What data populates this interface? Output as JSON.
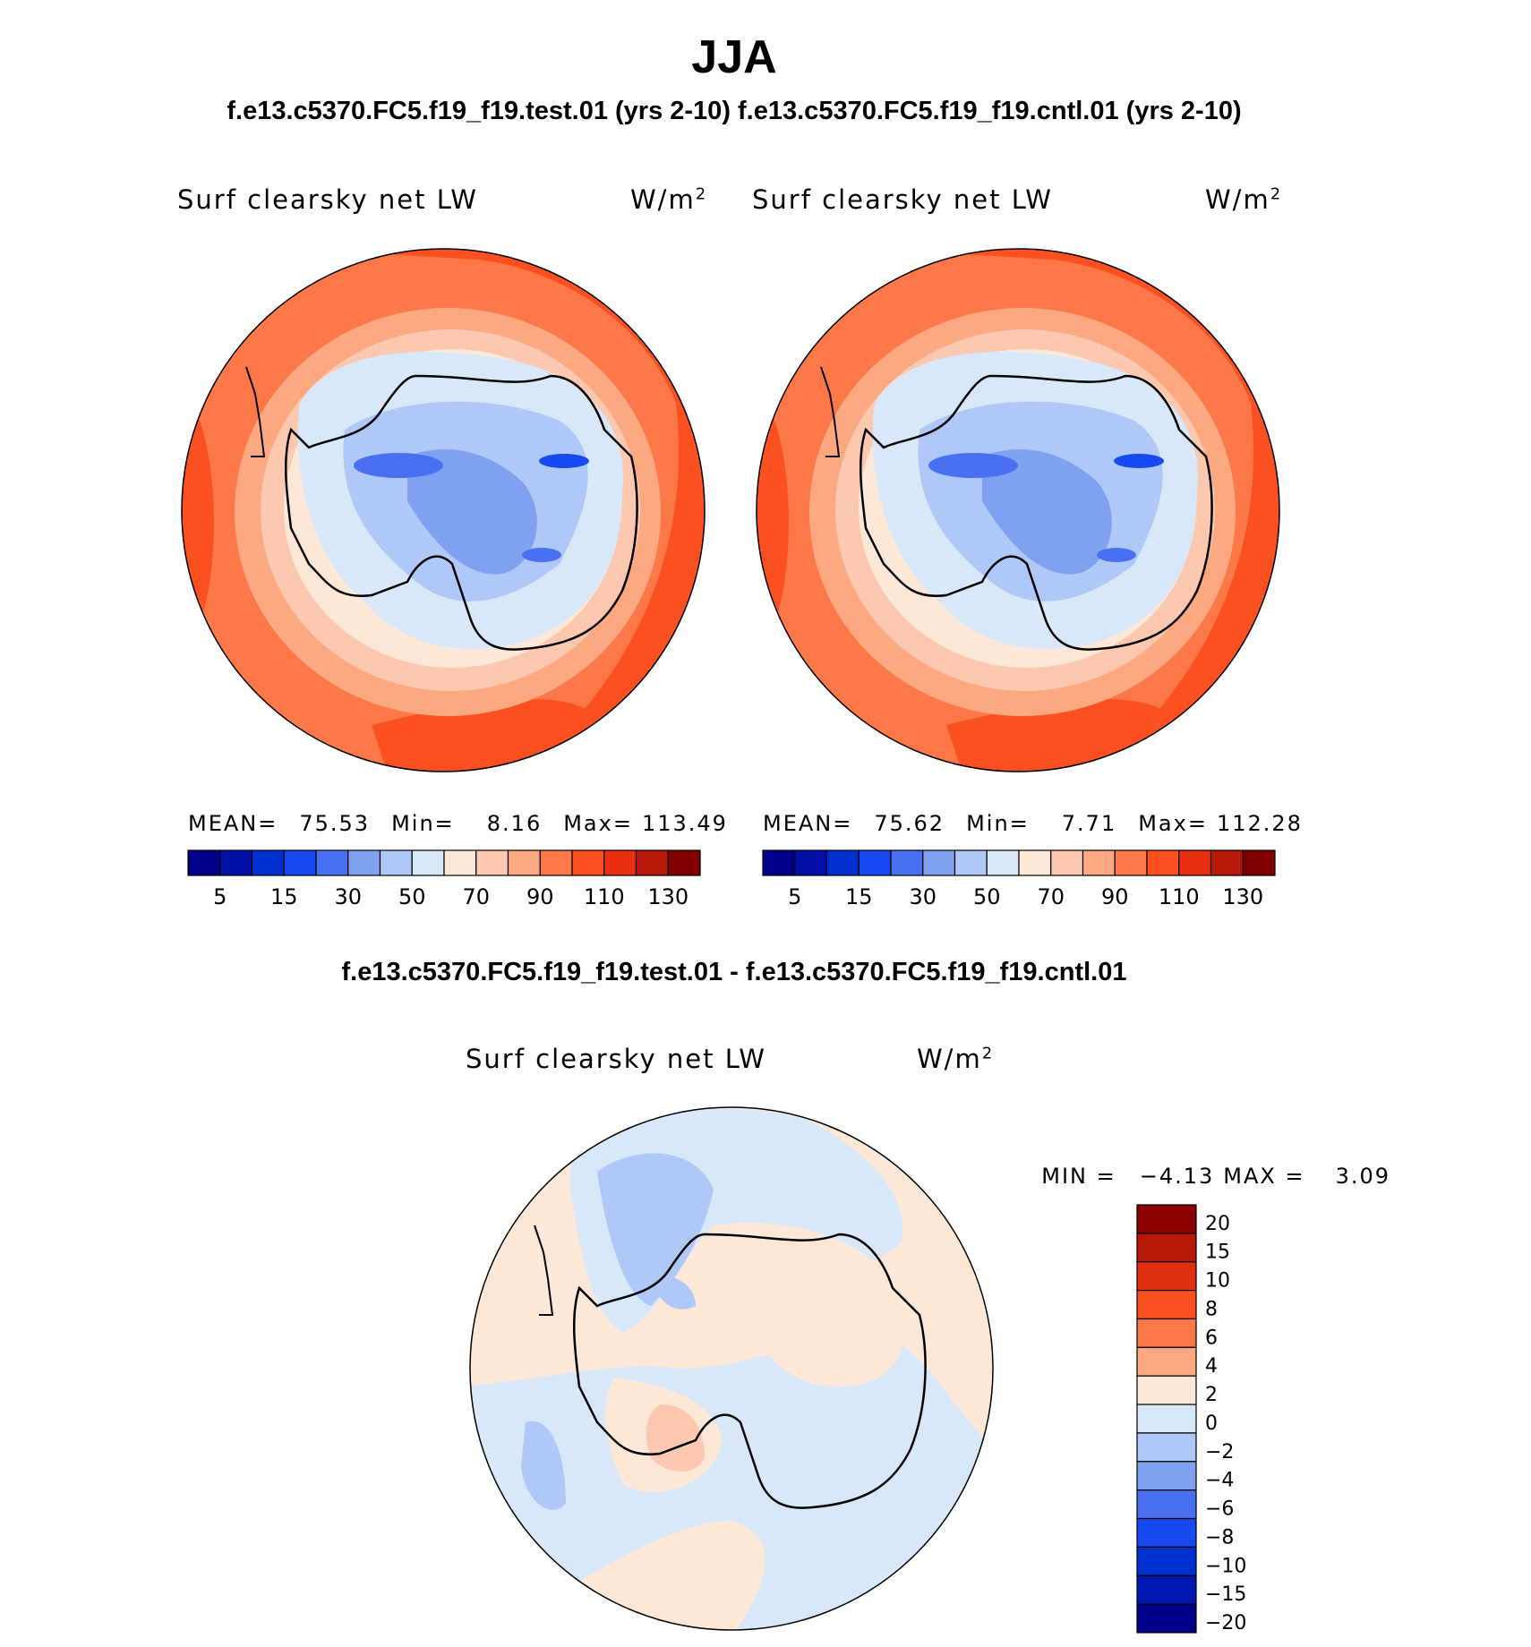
{
  "figure": {
    "title": "JJA",
    "subtitle": "f.e13.c5370.FC5.f19_f19.test.01 (yrs 2-10) f.e13.c5370.FC5.f19_f19.cntl.01 (yrs 2-10)",
    "diff_title": "f.e13.c5370.FC5.f19_f19.test.01 - f.e13.c5370.FC5.f19_f19.cntl.01"
  },
  "panels": {
    "test": {
      "variable": "Surf clearsky net LW",
      "units_base": "W/m",
      "units_exp": "2",
      "mean_label": "MEAN=",
      "mean_value": "75.53",
      "min_label": "Min=",
      "min_value": "8.16",
      "max_label": "Max=",
      "max_value": "113.49"
    },
    "cntl": {
      "variable": "Surf clearsky net LW",
      "units_base": "W/m",
      "units_exp": "2",
      "mean_label": "MEAN=",
      "mean_value": "75.62",
      "min_label": "Min=",
      "min_value": "7.71",
      "max_label": "Max=",
      "max_value": "112.28"
    },
    "diff": {
      "variable": "Surf clearsky net LW",
      "units_base": "W/m",
      "units_exp": "2",
      "min_label": "MIN =",
      "min_value": "−4.13",
      "max_label": "MAX =",
      "max_value": "3.09"
    }
  },
  "colorbars": {
    "main": {
      "colors": [
        "#00008b",
        "#0010a8",
        "#0030d0",
        "#1848f0",
        "#4870f0",
        "#80a0f0",
        "#b0c8f8",
        "#d8e8f8",
        "#fde8d8",
        "#fcc8b0",
        "#fca880",
        "#fc7848",
        "#fc5020",
        "#e83010",
        "#b81808",
        "#800000"
      ],
      "tick_labels": [
        "5",
        "15",
        "30",
        "50",
        "70",
        "90",
        "110",
        "130"
      ]
    },
    "diff": {
      "colors_top_to_bottom": [
        "#8b0000",
        "#b81808",
        "#e03010",
        "#fc5020",
        "#fc7848",
        "#fca880",
        "#fde8d8",
        "#d8e8f8",
        "#b0c8f8",
        "#80a0f0",
        "#4870f0",
        "#1848f0",
        "#0030d0",
        "#0018b0",
        "#00008b"
      ],
      "tick_labels_top_to_bottom": [
        "20",
        "15",
        "10",
        "8",
        "6",
        "4",
        "2",
        "0",
        "−2",
        "−4",
        "−6",
        "−8",
        "−10",
        "−15",
        "−20"
      ]
    }
  }
}
